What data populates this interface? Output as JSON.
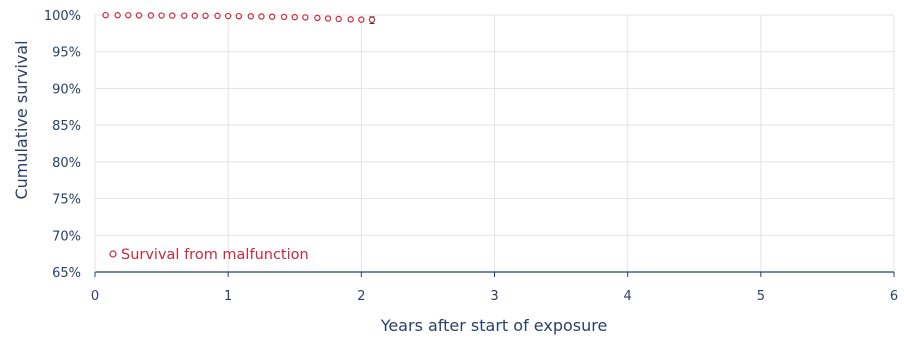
{
  "chart_data": {
    "type": "scatter",
    "xlabel": "Years after start of exposure",
    "ylabel": "Cumulative survival",
    "xlim": [
      0,
      6
    ],
    "ylim": [
      65,
      100
    ],
    "x_ticks": [
      0,
      1,
      2,
      3,
      4,
      5,
      6
    ],
    "y_ticks": [
      65,
      70,
      75,
      80,
      85,
      90,
      95,
      100
    ],
    "y_tick_suffix": "%",
    "grid": true,
    "legend_position": "bottom-left",
    "series": [
      {
        "name": "Survival from malfunction",
        "color": "#d0263e",
        "marker": "open-circle",
        "points": [
          {
            "x": 0.08,
            "y": 99.98
          },
          {
            "x": 0.17,
            "y": 99.97
          },
          {
            "x": 0.25,
            "y": 99.96
          },
          {
            "x": 0.33,
            "y": 99.95
          },
          {
            "x": 0.42,
            "y": 99.94
          },
          {
            "x": 0.5,
            "y": 99.93
          },
          {
            "x": 0.58,
            "y": 99.92
          },
          {
            "x": 0.67,
            "y": 99.91
          },
          {
            "x": 0.75,
            "y": 99.9
          },
          {
            "x": 0.83,
            "y": 99.89
          },
          {
            "x": 0.92,
            "y": 99.88
          },
          {
            "x": 1.0,
            "y": 99.86
          },
          {
            "x": 1.08,
            "y": 99.84
          },
          {
            "x": 1.17,
            "y": 99.82
          },
          {
            "x": 1.25,
            "y": 99.8
          },
          {
            "x": 1.33,
            "y": 99.77
          },
          {
            "x": 1.42,
            "y": 99.74
          },
          {
            "x": 1.5,
            "y": 99.71
          },
          {
            "x": 1.58,
            "y": 99.67
          },
          {
            "x": 1.67,
            "y": 99.6
          },
          {
            "x": 1.75,
            "y": 99.52
          },
          {
            "x": 1.83,
            "y": 99.46
          },
          {
            "x": 1.92,
            "y": 99.41
          },
          {
            "x": 2.0,
            "y": 99.37
          },
          {
            "x": 2.08,
            "y": 99.35
          }
        ],
        "error_bar": {
          "x": 2.08,
          "y": 99.35,
          "low": 98.85,
          "high": 99.75
        }
      }
    ]
  }
}
